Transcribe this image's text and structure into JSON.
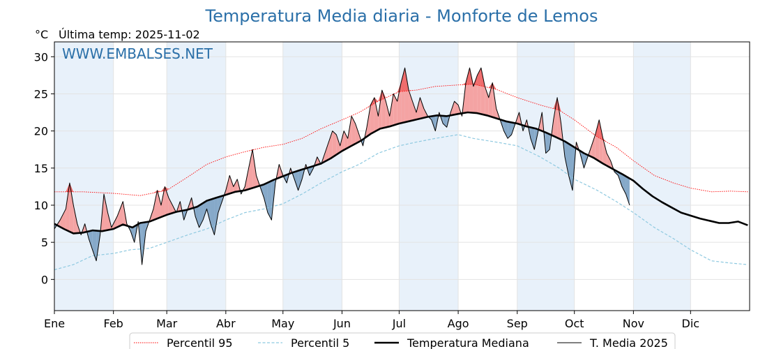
{
  "chart_data": {
    "type": "line",
    "title": "Temperatura Media diaria - Monforte de Lemos",
    "unit_label": "°C",
    "subtitle": "Última temp: 2025-11-02",
    "watermark": "WWW.EMBALSES.NET",
    "ylim": [
      -4.2,
      32
    ],
    "yticks": [
      0,
      5,
      10,
      15,
      20,
      25,
      30
    ],
    "month_labels": [
      "Ene",
      "Feb",
      "Mar",
      "Abr",
      "May",
      "Jun",
      "Jul",
      "Ago",
      "Sep",
      "Oct",
      "Nov",
      "Dic"
    ],
    "month_start_days": [
      0,
      31,
      59,
      90,
      120,
      151,
      181,
      212,
      243,
      273,
      304,
      334
    ],
    "days_in_year": 365,
    "grid": true,
    "legend_position": "bottom",
    "colors": {
      "p95": "#ff0000",
      "p5": "#8ec9e0",
      "median": "#000000",
      "actual": "#000000",
      "above_fill": "#f4a3a3",
      "above_strong": "#f06c6c",
      "below_fill": "#86a9c9",
      "title": "#2a6fa8",
      "band": "#e8f1fa"
    },
    "series": [
      {
        "name": "Percentil 95",
        "style": "dotted-red",
        "points": [
          [
            0,
            11.8
          ],
          [
            15,
            11.8
          ],
          [
            31,
            11.6
          ],
          [
            45,
            11.3
          ],
          [
            59,
            12.0
          ],
          [
            70,
            13.8
          ],
          [
            80,
            15.5
          ],
          [
            90,
            16.5
          ],
          [
            100,
            17.2
          ],
          [
            110,
            17.8
          ],
          [
            120,
            18.2
          ],
          [
            130,
            19.0
          ],
          [
            140,
            20.3
          ],
          [
            151,
            21.5
          ],
          [
            160,
            22.5
          ],
          [
            170,
            24.0
          ],
          [
            181,
            25.3
          ],
          [
            190,
            25.5
          ],
          [
            200,
            26.0
          ],
          [
            212,
            26.2
          ],
          [
            220,
            26.3
          ],
          [
            232,
            25.6
          ],
          [
            243,
            24.5
          ],
          [
            255,
            23.5
          ],
          [
            265,
            22.8
          ],
          [
            273,
            21.5
          ],
          [
            285,
            19.2
          ],
          [
            295,
            17.8
          ],
          [
            304,
            16.0
          ],
          [
            315,
            14.0
          ],
          [
            325,
            13.0
          ],
          [
            334,
            12.3
          ],
          [
            345,
            11.8
          ],
          [
            355,
            11.9
          ],
          [
            364,
            11.8
          ]
        ]
      },
      {
        "name": "Percentil 5",
        "style": "dashed-lightblue",
        "points": [
          [
            0,
            1.3
          ],
          [
            10,
            2.0
          ],
          [
            20,
            3.2
          ],
          [
            31,
            3.5
          ],
          [
            40,
            4.0
          ],
          [
            50,
            4.2
          ],
          [
            59,
            5.0
          ],
          [
            70,
            6.0
          ],
          [
            80,
            6.8
          ],
          [
            90,
            8.0
          ],
          [
            100,
            9.0
          ],
          [
            110,
            9.5
          ],
          [
            120,
            10.2
          ],
          [
            130,
            11.5
          ],
          [
            140,
            13.0
          ],
          [
            151,
            14.5
          ],
          [
            160,
            15.5
          ],
          [
            170,
            17.0
          ],
          [
            181,
            18.0
          ],
          [
            190,
            18.5
          ],
          [
            200,
            19.0
          ],
          [
            212,
            19.5
          ],
          [
            220,
            19.0
          ],
          [
            232,
            18.5
          ],
          [
            243,
            18.0
          ],
          [
            255,
            16.5
          ],
          [
            265,
            15.0
          ],
          [
            273,
            13.5
          ],
          [
            285,
            12.0
          ],
          [
            295,
            10.5
          ],
          [
            304,
            9.0
          ],
          [
            315,
            7.0
          ],
          [
            325,
            5.5
          ],
          [
            334,
            4.0
          ],
          [
            345,
            2.5
          ],
          [
            355,
            2.2
          ],
          [
            364,
            2.0
          ]
        ]
      },
      {
        "name": "Temperatura Mediana",
        "style": "thick-black",
        "points": [
          [
            0,
            7.5
          ],
          [
            5,
            6.8
          ],
          [
            10,
            6.2
          ],
          [
            15,
            6.3
          ],
          [
            20,
            6.6
          ],
          [
            25,
            6.5
          ],
          [
            31,
            6.8
          ],
          [
            36,
            7.4
          ],
          [
            41,
            7.0
          ],
          [
            45,
            7.6
          ],
          [
            50,
            7.8
          ],
          [
            55,
            8.3
          ],
          [
            59,
            8.7
          ],
          [
            64,
            9.1
          ],
          [
            70,
            9.4
          ],
          [
            75,
            9.8
          ],
          [
            80,
            10.6
          ],
          [
            85,
            11.0
          ],
          [
            90,
            11.4
          ],
          [
            95,
            11.8
          ],
          [
            100,
            12.0
          ],
          [
            105,
            12.4
          ],
          [
            110,
            12.8
          ],
          [
            115,
            13.4
          ],
          [
            120,
            13.9
          ],
          [
            125,
            14.4
          ],
          [
            130,
            14.8
          ],
          [
            135,
            15.2
          ],
          [
            140,
            15.6
          ],
          [
            145,
            16.3
          ],
          [
            151,
            17.3
          ],
          [
            156,
            18.0
          ],
          [
            161,
            18.7
          ],
          [
            166,
            19.6
          ],
          [
            171,
            20.3
          ],
          [
            176,
            20.6
          ],
          [
            181,
            21.0
          ],
          [
            186,
            21.3
          ],
          [
            191,
            21.6
          ],
          [
            196,
            21.9
          ],
          [
            201,
            22.1
          ],
          [
            206,
            22.0
          ],
          [
            212,
            22.3
          ],
          [
            217,
            22.5
          ],
          [
            222,
            22.4
          ],
          [
            227,
            22.1
          ],
          [
            232,
            21.7
          ],
          [
            237,
            21.3
          ],
          [
            243,
            21.0
          ],
          [
            248,
            20.6
          ],
          [
            253,
            20.3
          ],
          [
            258,
            19.8
          ],
          [
            263,
            19.2
          ],
          [
            268,
            18.6
          ],
          [
            273,
            17.8
          ],
          [
            278,
            17.0
          ],
          [
            283,
            16.4
          ],
          [
            288,
            15.6
          ],
          [
            293,
            14.9
          ],
          [
            298,
            14.2
          ],
          [
            304,
            13.3
          ],
          [
            309,
            12.2
          ],
          [
            314,
            11.2
          ],
          [
            319,
            10.4
          ],
          [
            324,
            9.7
          ],
          [
            329,
            9.0
          ],
          [
            334,
            8.6
          ],
          [
            339,
            8.2
          ],
          [
            344,
            7.9
          ],
          [
            349,
            7.6
          ],
          [
            354,
            7.6
          ],
          [
            359,
            7.8
          ],
          [
            364,
            7.3
          ]
        ]
      },
      {
        "name": "T. Media 2025",
        "style": "thin-black",
        "points": [
          [
            0,
            6.8
          ],
          [
            3,
            8.0
          ],
          [
            6,
            9.5
          ],
          [
            8,
            13.0
          ],
          [
            10,
            10.0
          ],
          [
            12,
            7.5
          ],
          [
            14,
            6.0
          ],
          [
            16,
            7.5
          ],
          [
            18,
            5.5
          ],
          [
            20,
            4.0
          ],
          [
            22,
            2.5
          ],
          [
            24,
            6.0
          ],
          [
            26,
            11.5
          ],
          [
            28,
            9.0
          ],
          [
            30,
            7.0
          ],
          [
            33,
            8.5
          ],
          [
            36,
            10.5
          ],
          [
            38,
            7.5
          ],
          [
            40,
            6.5
          ],
          [
            42,
            5.0
          ],
          [
            44,
            7.8
          ],
          [
            46,
            2.0
          ],
          [
            48,
            6.5
          ],
          [
            50,
            8.0
          ],
          [
            52,
            9.5
          ],
          [
            54,
            12.0
          ],
          [
            56,
            10.0
          ],
          [
            58,
            12.5
          ],
          [
            60,
            11.0
          ],
          [
            62,
            10.0
          ],
          [
            64,
            9.0
          ],
          [
            66,
            10.5
          ],
          [
            68,
            8.0
          ],
          [
            70,
            9.5
          ],
          [
            72,
            11.0
          ],
          [
            74,
            8.5
          ],
          [
            76,
            7.0
          ],
          [
            78,
            8.0
          ],
          [
            80,
            9.5
          ],
          [
            82,
            7.5
          ],
          [
            84,
            6.0
          ],
          [
            86,
            9.0
          ],
          [
            88,
            10.5
          ],
          [
            90,
            12.0
          ],
          [
            92,
            14.0
          ],
          [
            94,
            12.5
          ],
          [
            96,
            13.5
          ],
          [
            98,
            11.5
          ],
          [
            100,
            12.5
          ],
          [
            102,
            15.0
          ],
          [
            104,
            17.5
          ],
          [
            106,
            14.0
          ],
          [
            108,
            12.5
          ],
          [
            110,
            11.0
          ],
          [
            112,
            9.0
          ],
          [
            114,
            8.0
          ],
          [
            116,
            13.0
          ],
          [
            118,
            15.5
          ],
          [
            120,
            14.0
          ],
          [
            122,
            13.0
          ],
          [
            124,
            15.0
          ],
          [
            126,
            13.5
          ],
          [
            128,
            12.0
          ],
          [
            130,
            13.5
          ],
          [
            132,
            15.5
          ],
          [
            134,
            14.0
          ],
          [
            136,
            15.0
          ],
          [
            138,
            16.5
          ],
          [
            140,
            15.5
          ],
          [
            142,
            17.0
          ],
          [
            144,
            18.5
          ],
          [
            146,
            20.0
          ],
          [
            148,
            19.5
          ],
          [
            150,
            18.0
          ],
          [
            152,
            20.0
          ],
          [
            154,
            19.0
          ],
          [
            156,
            22.0
          ],
          [
            158,
            21.0
          ],
          [
            160,
            19.5
          ],
          [
            162,
            18.0
          ],
          [
            164,
            20.5
          ],
          [
            166,
            23.5
          ],
          [
            168,
            24.5
          ],
          [
            170,
            22.0
          ],
          [
            172,
            25.5
          ],
          [
            174,
            24.0
          ],
          [
            176,
            22.0
          ],
          [
            178,
            25.0
          ],
          [
            180,
            24.0
          ],
          [
            182,
            26.5
          ],
          [
            184,
            28.5
          ],
          [
            186,
            25.5
          ],
          [
            188,
            24.0
          ],
          [
            190,
            22.5
          ],
          [
            192,
            24.5
          ],
          [
            194,
            23.0
          ],
          [
            196,
            22.0
          ],
          [
            198,
            21.5
          ],
          [
            200,
            20.0
          ],
          [
            202,
            22.5
          ],
          [
            204,
            21.0
          ],
          [
            206,
            20.5
          ],
          [
            208,
            22.5
          ],
          [
            210,
            24.0
          ],
          [
            212,
            23.5
          ],
          [
            214,
            22.0
          ],
          [
            216,
            26.5
          ],
          [
            218,
            28.5
          ],
          [
            220,
            26.0
          ],
          [
            222,
            27.5
          ],
          [
            224,
            28.5
          ],
          [
            226,
            26.0
          ],
          [
            228,
            24.5
          ],
          [
            230,
            26.5
          ],
          [
            232,
            23.0
          ],
          [
            234,
            21.5
          ],
          [
            236,
            20.0
          ],
          [
            238,
            19.0
          ],
          [
            240,
            19.5
          ],
          [
            242,
            21.0
          ],
          [
            244,
            22.5
          ],
          [
            246,
            20.0
          ],
          [
            248,
            21.5
          ],
          [
            250,
            19.0
          ],
          [
            252,
            17.5
          ],
          [
            254,
            20.0
          ],
          [
            256,
            22.5
          ],
          [
            258,
            17.0
          ],
          [
            260,
            17.5
          ],
          [
            262,
            21.5
          ],
          [
            264,
            24.5
          ],
          [
            266,
            21.0
          ],
          [
            268,
            16.5
          ],
          [
            270,
            14.0
          ],
          [
            272,
            12.0
          ],
          [
            274,
            18.5
          ],
          [
            276,
            17.0
          ],
          [
            278,
            15.0
          ],
          [
            280,
            16.5
          ],
          [
            282,
            18.0
          ],
          [
            284,
            19.5
          ],
          [
            286,
            21.5
          ],
          [
            288,
            19.0
          ],
          [
            290,
            17.0
          ],
          [
            292,
            16.0
          ],
          [
            294,
            14.5
          ],
          [
            296,
            14.0
          ],
          [
            298,
            12.5
          ],
          [
            300,
            11.5
          ],
          [
            302,
            10.0
          ]
        ]
      }
    ]
  }
}
